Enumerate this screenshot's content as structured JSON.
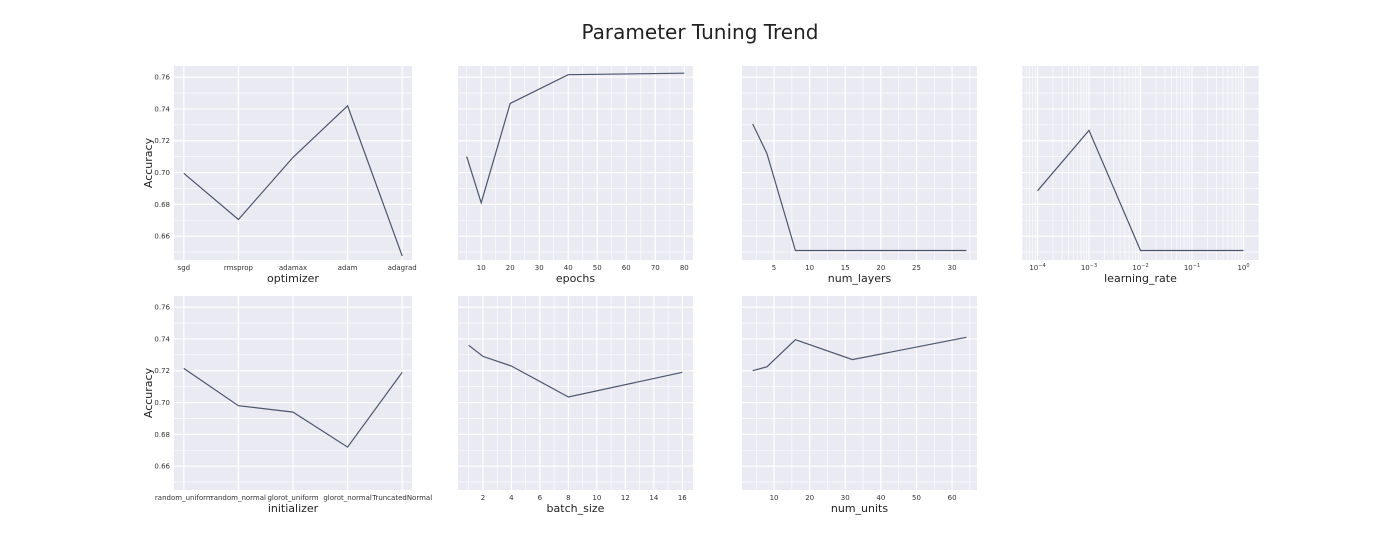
{
  "figure": {
    "title": "Parameter Tuning Trend"
  },
  "chart_data": [
    {
      "type": "line",
      "xscale": "categorical",
      "xlabel": "optimizer",
      "ylabel": "Accuracy",
      "categories": [
        "sgd",
        "rmsprop",
        "adamax",
        "adam",
        "adagrad"
      ],
      "x": [
        "sgd",
        "rmsprop",
        "adamax",
        "adam",
        "adagrad"
      ],
      "y": [
        0.6995,
        0.6705,
        0.7095,
        0.742,
        0.6475
      ],
      "ylim": [
        0.645,
        0.767
      ],
      "yticks": [
        0.66,
        0.68,
        0.7,
        0.72,
        0.74,
        0.76
      ],
      "ytick_labels": [
        "0.66",
        "0.68",
        "0.70",
        "0.72",
        "0.74",
        "0.76"
      ],
      "grid": true
    },
    {
      "type": "line",
      "xscale": "linear",
      "xlabel": "epochs",
      "ylabel": "",
      "x": [
        5,
        10,
        20,
        40,
        80
      ],
      "y": [
        0.71,
        0.681,
        0.7435,
        0.7615,
        0.7625
      ],
      "xlim": [
        2,
        83
      ],
      "xticks": [
        10,
        20,
        30,
        40,
        50,
        60,
        70,
        80
      ],
      "xtick_labels": [
        "10",
        "20",
        "30",
        "40",
        "50",
        "60",
        "70",
        "80"
      ],
      "ylim": [
        0.645,
        0.767
      ],
      "grid": true
    },
    {
      "type": "line",
      "xscale": "linear",
      "xlabel": "num_layers",
      "ylabel": "",
      "x": [
        2,
        4,
        8,
        16,
        32
      ],
      "y": [
        0.7305,
        0.712,
        0.651,
        0.651,
        0.651
      ],
      "xlim": [
        0.5,
        33.5
      ],
      "xticks": [
        5,
        10,
        15,
        20,
        25,
        30
      ],
      "xtick_labels": [
        "5",
        "10",
        "15",
        "20",
        "25",
        "30"
      ],
      "ylim": [
        0.645,
        0.767
      ],
      "grid": true
    },
    {
      "type": "line",
      "xscale": "log",
      "xlabel": "learning_rate",
      "ylabel": "",
      "x": [
        0.0001,
        0.001,
        0.01,
        0.1,
        1
      ],
      "y": [
        0.6885,
        0.7265,
        0.651,
        0.651,
        0.651
      ],
      "xlim": [
        5e-05,
        2
      ],
      "xticks": [
        0.0001,
        0.001,
        0.01,
        0.1,
        1
      ],
      "xtick_labels": [
        {
          "base": "10",
          "exp": "−4"
        },
        {
          "base": "10",
          "exp": "−3"
        },
        {
          "base": "10",
          "exp": "−2"
        },
        {
          "base": "10",
          "exp": "−1"
        },
        {
          "base": "10",
          "exp": "0"
        }
      ],
      "ylim": [
        0.645,
        0.767
      ],
      "grid": true
    },
    {
      "type": "line",
      "xscale": "categorical",
      "xlabel": "initializer",
      "ylabel": "Accuracy",
      "categories": [
        "random_uniform",
        "random_normal",
        "glorot_uniform",
        "glorot_normal",
        "TruncatedNormal"
      ],
      "x": [
        "random_uniform",
        "random_normal",
        "glorot_uniform",
        "glorot_normal",
        "TruncatedNormal"
      ],
      "y": [
        0.7215,
        0.698,
        0.694,
        0.672,
        0.719
      ],
      "ylim": [
        0.645,
        0.767
      ],
      "yticks": [
        0.66,
        0.68,
        0.7,
        0.72,
        0.74,
        0.76
      ],
      "ytick_labels": [
        "0.66",
        "0.68",
        "0.70",
        "0.72",
        "0.74",
        "0.76"
      ],
      "grid": true
    },
    {
      "type": "line",
      "xscale": "linear",
      "xlabel": "batch_size",
      "ylabel": "",
      "x": [
        1,
        2,
        4,
        8,
        16
      ],
      "y": [
        0.736,
        0.729,
        0.723,
        0.7035,
        0.719
      ],
      "xlim": [
        0.25,
        16.75
      ],
      "xticks": [
        2,
        4,
        6,
        8,
        10,
        12,
        14,
        16
      ],
      "xtick_labels": [
        "2",
        "4",
        "6",
        "8",
        "10",
        "12",
        "14",
        "16"
      ],
      "ylim": [
        0.645,
        0.767
      ],
      "grid": true
    },
    {
      "type": "line",
      "xscale": "linear",
      "xlabel": "num_units",
      "ylabel": "",
      "x": [
        4,
        8,
        16,
        32,
        64
      ],
      "y": [
        0.72,
        0.7225,
        0.7395,
        0.727,
        0.741
      ],
      "xlim": [
        1,
        67
      ],
      "xticks": [
        10,
        20,
        30,
        40,
        50,
        60
      ],
      "xtick_labels": [
        "10",
        "20",
        "30",
        "40",
        "50",
        "60"
      ],
      "ylim": [
        0.645,
        0.767
      ],
      "grid": true
    }
  ]
}
